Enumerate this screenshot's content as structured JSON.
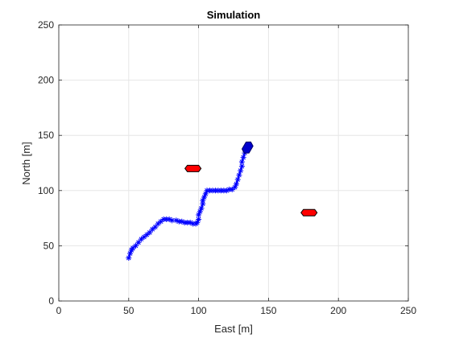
{
  "chart_data": {
    "type": "scatter",
    "title": "Simulation",
    "xlabel": "East [m]",
    "ylabel": "North [m]",
    "xlim": [
      0,
      250
    ],
    "ylim": [
      0,
      250
    ],
    "xticks": [
      0,
      50,
      100,
      150,
      200,
      250
    ],
    "yticks": [
      0,
      50,
      100,
      150,
      200,
      250
    ],
    "grid": true,
    "legend": "none",
    "series": [
      {
        "role": "trajectory",
        "marker": "asterisk",
        "line": true,
        "color": "#0000ff",
        "points": [
          [
            50,
            39
          ],
          [
            51,
            43
          ],
          [
            52,
            46
          ],
          [
            53,
            48
          ],
          [
            55,
            50
          ],
          [
            57,
            53
          ],
          [
            59,
            56
          ],
          [
            61,
            58
          ],
          [
            63,
            60
          ],
          [
            65,
            62
          ],
          [
            67,
            65
          ],
          [
            69,
            67
          ],
          [
            71,
            70
          ],
          [
            73,
            72
          ],
          [
            75,
            74
          ],
          [
            77,
            74
          ],
          [
            79,
            74
          ],
          [
            81,
            73
          ],
          [
            84,
            73
          ],
          [
            86,
            72
          ],
          [
            88,
            72
          ],
          [
            90,
            71
          ],
          [
            92,
            71
          ],
          [
            94,
            71
          ],
          [
            96,
            70
          ],
          [
            98,
            70
          ],
          [
            99,
            71
          ],
          [
            100,
            74
          ],
          [
            100,
            78
          ],
          [
            101,
            81
          ],
          [
            102,
            84
          ],
          [
            103,
            88
          ],
          [
            103,
            91
          ],
          [
            104,
            94
          ],
          [
            105,
            97
          ],
          [
            106,
            100
          ],
          [
            108,
            100
          ],
          [
            110,
            100
          ],
          [
            112,
            100
          ],
          [
            114,
            100
          ],
          [
            116,
            100
          ],
          [
            118,
            100
          ],
          [
            120,
            100
          ],
          [
            122,
            101
          ],
          [
            124,
            101
          ],
          [
            126,
            103
          ],
          [
            127,
            106
          ],
          [
            128,
            110
          ],
          [
            129,
            114
          ],
          [
            130,
            118
          ],
          [
            131,
            122
          ],
          [
            131,
            126
          ],
          [
            132,
            130
          ],
          [
            133,
            134
          ]
        ]
      }
    ],
    "robot": {
      "x": 135,
      "y": 139,
      "heading_deg": 60,
      "color": "#0000cc"
    },
    "obstacles": [
      {
        "x": 96,
        "y": 120,
        "color": "#ff0000"
      },
      {
        "x": 179,
        "y": 80,
        "color": "#ff0000"
      }
    ]
  }
}
